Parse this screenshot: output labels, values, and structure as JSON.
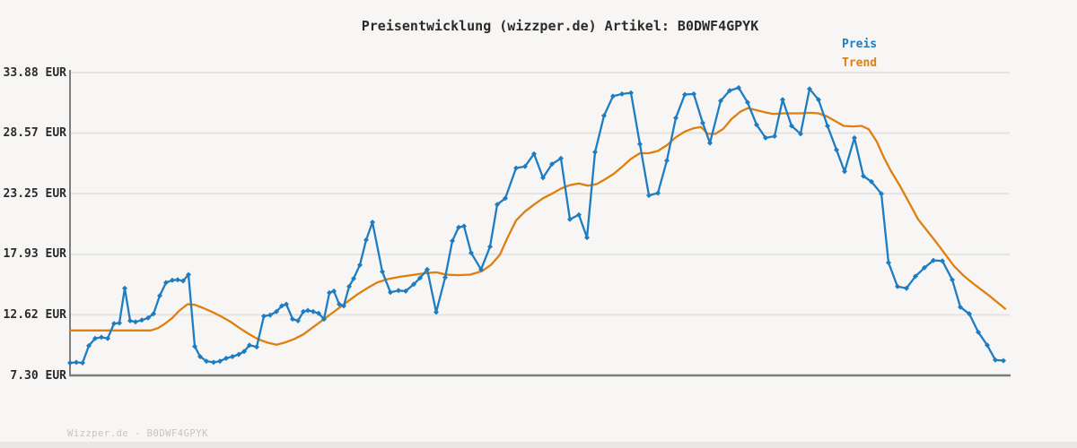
{
  "title": "Preisentwicklung (wizzper.de) Artikel: B0DWF4GPYK",
  "legend": {
    "preis": "Preis",
    "trend": "Trend"
  },
  "footer": "Wizzper.de - B0DWF4GPYK",
  "colors": {
    "preis": "#1e7dc2",
    "trend": "#df7f0e",
    "axis": "#7d7d7d",
    "grid": "#e4e3e1",
    "background": "#f7f6f4",
    "tick_text": "#2b2b2b",
    "footer_text": "#c5c4c2"
  },
  "chart_data": {
    "type": "line",
    "unit": "EUR",
    "grid": true,
    "legend_position": "top-right",
    "x_axis": {
      "labels_visible": false
    },
    "y_axis": {
      "min": 7.3,
      "max": 33.88,
      "ticks": [
        33.88,
        28.57,
        23.25,
        17.93,
        12.62,
        7.3
      ],
      "tick_labels": [
        "33.88 EUR",
        "28.57 EUR",
        "23.25 EUR",
        "17.93 EUR",
        "12.62 EUR",
        "7.30 EUR"
      ]
    },
    "series": [
      {
        "name": "Preis",
        "markers": true,
        "points": [
          [
            78,
            8.4
          ],
          [
            85,
            8.45
          ],
          [
            92,
            8.4
          ],
          [
            99,
            9.9
          ],
          [
            106,
            10.55
          ],
          [
            113,
            10.65
          ],
          [
            120,
            10.55
          ],
          [
            127,
            11.85
          ],
          [
            133,
            11.9
          ],
          [
            139,
            14.95
          ],
          [
            145,
            12.1
          ],
          [
            151,
            12.0
          ],
          [
            158,
            12.15
          ],
          [
            165,
            12.35
          ],
          [
            171,
            12.7
          ],
          [
            178,
            14.3
          ],
          [
            185,
            15.45
          ],
          [
            192,
            15.65
          ],
          [
            198,
            15.7
          ],
          [
            204,
            15.6
          ],
          [
            210,
            16.15
          ],
          [
            217,
            9.85
          ],
          [
            223,
            8.95
          ],
          [
            230,
            8.55
          ],
          [
            238,
            8.45
          ],
          [
            245,
            8.55
          ],
          [
            252,
            8.8
          ],
          [
            259,
            8.95
          ],
          [
            266,
            9.15
          ],
          [
            272,
            9.4
          ],
          [
            278,
            9.95
          ],
          [
            286,
            9.8
          ],
          [
            294,
            12.5
          ],
          [
            301,
            12.6
          ],
          [
            308,
            12.9
          ],
          [
            314,
            13.4
          ],
          [
            319,
            13.55
          ],
          [
            326,
            12.25
          ],
          [
            332,
            12.1
          ],
          [
            338,
            12.9
          ],
          [
            343,
            13.0
          ],
          [
            349,
            12.9
          ],
          [
            355,
            12.75
          ],
          [
            361,
            12.25
          ],
          [
            367,
            14.55
          ],
          [
            372,
            14.7
          ],
          [
            378,
            13.55
          ],
          [
            383,
            13.4
          ],
          [
            389,
            15.1
          ],
          [
            394,
            15.8
          ],
          [
            401,
            17.0
          ],
          [
            408,
            19.2
          ],
          [
            415,
            20.75
          ],
          [
            426,
            16.4
          ],
          [
            435,
            14.6
          ],
          [
            444,
            14.75
          ],
          [
            452,
            14.7
          ],
          [
            461,
            15.3
          ],
          [
            468,
            15.85
          ],
          [
            476,
            16.6
          ],
          [
            486,
            12.85
          ],
          [
            496,
            15.9
          ],
          [
            504,
            19.1
          ],
          [
            511,
            20.3
          ],
          [
            517,
            20.4
          ],
          [
            525,
            18.05
          ],
          [
            536,
            16.6
          ],
          [
            546,
            18.6
          ],
          [
            554,
            22.3
          ],
          [
            563,
            22.85
          ],
          [
            575,
            25.5
          ],
          [
            585,
            25.65
          ],
          [
            595,
            26.75
          ],
          [
            605,
            24.65
          ],
          [
            615,
            25.85
          ],
          [
            625,
            26.35
          ],
          [
            635,
            21.0
          ],
          [
            645,
            21.4
          ],
          [
            654,
            19.4
          ],
          [
            663,
            26.9
          ],
          [
            673,
            30.1
          ],
          [
            683,
            31.8
          ],
          [
            693,
            32.0
          ],
          [
            703,
            32.1
          ],
          [
            713,
            27.6
          ],
          [
            723,
            23.1
          ],
          [
            733,
            23.3
          ],
          [
            743,
            26.15
          ],
          [
            753,
            29.9
          ],
          [
            763,
            31.95
          ],
          [
            773,
            32.0
          ],
          [
            783,
            29.45
          ],
          [
            791,
            27.7
          ],
          [
            803,
            31.4
          ],
          [
            813,
            32.3
          ],
          [
            823,
            32.55
          ],
          [
            833,
            31.25
          ],
          [
            843,
            29.3
          ],
          [
            853,
            28.15
          ],
          [
            863,
            28.3
          ],
          [
            872,
            31.5
          ],
          [
            882,
            29.2
          ],
          [
            892,
            28.5
          ],
          [
            902,
            32.45
          ],
          [
            912,
            31.5
          ],
          [
            922,
            29.2
          ],
          [
            932,
            27.1
          ],
          [
            941,
            25.2
          ],
          [
            952,
            28.15
          ],
          [
            962,
            24.8
          ],
          [
            971,
            24.3
          ],
          [
            982,
            23.25
          ],
          [
            990,
            17.2
          ],
          [
            1000,
            15.1
          ],
          [
            1010,
            14.95
          ],
          [
            1020,
            16.0
          ],
          [
            1030,
            16.75
          ],
          [
            1040,
            17.4
          ],
          [
            1050,
            17.35
          ],
          [
            1061,
            15.7
          ],
          [
            1070,
            13.3
          ],
          [
            1080,
            12.7
          ],
          [
            1090,
            11.1
          ],
          [
            1100,
            9.95
          ],
          [
            1109,
            8.65
          ],
          [
            1118,
            8.6
          ]
        ]
      },
      {
        "name": "Trend",
        "markers": false,
        "points": [
          [
            78,
            11.25
          ],
          [
            100,
            11.25
          ],
          [
            120,
            11.25
          ],
          [
            140,
            11.25
          ],
          [
            155,
            11.25
          ],
          [
            168,
            11.25
          ],
          [
            176,
            11.45
          ],
          [
            184,
            11.85
          ],
          [
            192,
            12.35
          ],
          [
            200,
            13.0
          ],
          [
            209,
            13.55
          ],
          [
            217,
            13.5
          ],
          [
            227,
            13.2
          ],
          [
            237,
            12.85
          ],
          [
            247,
            12.45
          ],
          [
            257,
            12.0
          ],
          [
            267,
            11.45
          ],
          [
            277,
            10.95
          ],
          [
            287,
            10.5
          ],
          [
            297,
            10.2
          ],
          [
            308,
            10.0
          ],
          [
            318,
            10.2
          ],
          [
            328,
            10.5
          ],
          [
            338,
            10.9
          ],
          [
            350,
            11.6
          ],
          [
            362,
            12.3
          ],
          [
            374,
            13.0
          ],
          [
            386,
            13.7
          ],
          [
            398,
            14.4
          ],
          [
            410,
            15.0
          ],
          [
            420,
            15.45
          ],
          [
            432,
            15.75
          ],
          [
            445,
            15.95
          ],
          [
            458,
            16.1
          ],
          [
            472,
            16.25
          ],
          [
            486,
            16.35
          ],
          [
            497,
            16.15
          ],
          [
            510,
            16.1
          ],
          [
            524,
            16.15
          ],
          [
            537,
            16.45
          ],
          [
            547,
            17.0
          ],
          [
            557,
            17.9
          ],
          [
            565,
            19.3
          ],
          [
            575,
            20.9
          ],
          [
            585,
            21.7
          ],
          [
            595,
            22.3
          ],
          [
            605,
            22.85
          ],
          [
            615,
            23.25
          ],
          [
            625,
            23.7
          ],
          [
            635,
            24.0
          ],
          [
            645,
            24.15
          ],
          [
            655,
            23.95
          ],
          [
            665,
            24.1
          ],
          [
            675,
            24.55
          ],
          [
            684,
            25.0
          ],
          [
            693,
            25.6
          ],
          [
            703,
            26.3
          ],
          [
            713,
            26.8
          ],
          [
            723,
            26.8
          ],
          [
            733,
            27.0
          ],
          [
            743,
            27.5
          ],
          [
            753,
            28.2
          ],
          [
            763,
            28.7
          ],
          [
            773,
            29.0
          ],
          [
            781,
            29.1
          ],
          [
            789,
            28.5
          ],
          [
            797,
            28.5
          ],
          [
            806,
            28.95
          ],
          [
            815,
            29.8
          ],
          [
            825,
            30.45
          ],
          [
            833,
            30.75
          ],
          [
            842,
            30.6
          ],
          [
            852,
            30.4
          ],
          [
            862,
            30.25
          ],
          [
            872,
            30.3
          ],
          [
            882,
            30.3
          ],
          [
            892,
            30.3
          ],
          [
            902,
            30.35
          ],
          [
            912,
            30.3
          ],
          [
            921,
            30.05
          ],
          [
            930,
            29.65
          ],
          [
            940,
            29.2
          ],
          [
            950,
            29.15
          ],
          [
            960,
            29.2
          ],
          [
            968,
            28.9
          ],
          [
            977,
            27.8
          ],
          [
            985,
            26.4
          ],
          [
            993,
            25.2
          ],
          [
            1003,
            23.9
          ],
          [
            1013,
            22.45
          ],
          [
            1023,
            21.0
          ],
          [
            1033,
            20.0
          ],
          [
            1043,
            19.0
          ],
          [
            1053,
            17.95
          ],
          [
            1063,
            16.9
          ],
          [
            1073,
            16.1
          ],
          [
            1083,
            15.45
          ],
          [
            1093,
            14.85
          ],
          [
            1103,
            14.25
          ],
          [
            1113,
            13.6
          ],
          [
            1120,
            13.15
          ]
        ]
      }
    ]
  }
}
